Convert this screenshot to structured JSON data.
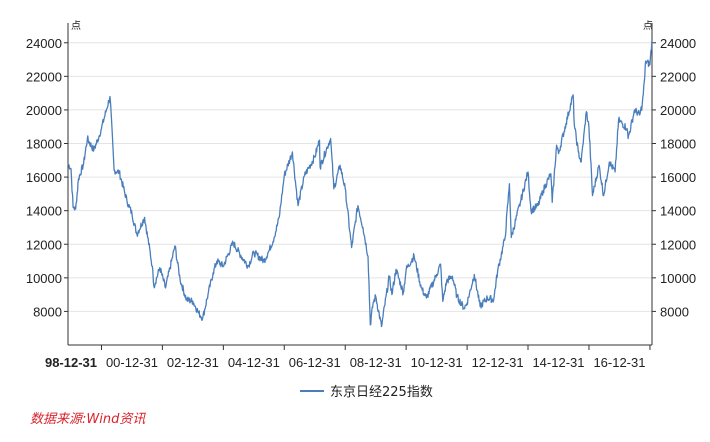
{
  "chart_data": {
    "type": "line",
    "title": "",
    "left_unit": "点",
    "right_unit": "点",
    "x_tick_labels": [
      "98-12-31",
      "00-12-31",
      "02-12-31",
      "04-12-31",
      "06-12-31",
      "08-12-31",
      "10-12-31",
      "12-12-31",
      "14-12-31",
      "16-12-31"
    ],
    "y_ticks": [
      8000,
      10000,
      12000,
      14000,
      16000,
      18000,
      20000,
      22000,
      24000
    ],
    "ylim": [
      6000,
      24700
    ],
    "xlim": [
      "1998-11-25",
      "2018-01-25"
    ],
    "grid": true,
    "legend_position": "bottom-center",
    "series": [
      {
        "name": "东京日经225指数",
        "color": "#4a7ebb",
        "points": [
          [
            "1998-11-25",
            16800
          ],
          [
            "1998-12-31",
            16500
          ],
          [
            "1999-01-25",
            14200
          ],
          [
            "1999-02-25",
            14100
          ],
          [
            "1999-03-31",
            15900
          ],
          [
            "1999-05-31",
            16800
          ],
          [
            "1999-07-15",
            18300
          ],
          [
            "1999-09-30",
            17600
          ],
          [
            "1999-11-30",
            18400
          ],
          [
            "1999-12-31",
            18900
          ],
          [
            "2000-02-28",
            20000
          ],
          [
            "2000-04-12",
            20800
          ],
          [
            "2000-05-31",
            16400
          ],
          [
            "2000-07-31",
            16300
          ],
          [
            "2000-10-31",
            14600
          ],
          [
            "2000-12-31",
            13800
          ],
          [
            "2001-02-28",
            12600
          ],
          [
            "2001-05-31",
            13600
          ],
          [
            "2001-08-31",
            10700
          ],
          [
            "2001-09-20",
            9500
          ],
          [
            "2001-11-30",
            10600
          ],
          [
            "2002-02-06",
            9400
          ],
          [
            "2002-05-30",
            11900
          ],
          [
            "2002-07-31",
            9900
          ],
          [
            "2002-10-15",
            8700
          ],
          [
            "2002-12-31",
            8600
          ],
          [
            "2003-03-11",
            7900
          ],
          [
            "2003-04-28",
            7600
          ],
          [
            "2003-06-30",
            9000
          ],
          [
            "2003-08-31",
            10300
          ],
          [
            "2003-10-15",
            11000
          ],
          [
            "2003-12-31",
            10700
          ],
          [
            "2004-04-26",
            12100
          ],
          [
            "2004-07-31",
            11300
          ],
          [
            "2004-10-25",
            10700
          ],
          [
            "2004-12-31",
            11500
          ],
          [
            "2005-04-30",
            11000
          ],
          [
            "2005-06-30",
            11600
          ],
          [
            "2005-08-31",
            12400
          ],
          [
            "2005-10-31",
            13600
          ],
          [
            "2005-12-31",
            16100
          ],
          [
            "2006-04-07",
            17500
          ],
          [
            "2006-06-13",
            14300
          ],
          [
            "2006-08-31",
            16100
          ],
          [
            "2006-12-31",
            17200
          ],
          [
            "2007-02-26",
            18200
          ],
          [
            "2007-03-05",
            16600
          ],
          [
            "2007-05-31",
            17800
          ],
          [
            "2007-07-09",
            18300
          ],
          [
            "2007-08-17",
            15300
          ],
          [
            "2007-10-31",
            16700
          ],
          [
            "2007-12-31",
            15300
          ],
          [
            "2008-03-17",
            11800
          ],
          [
            "2008-05-31",
            14300
          ],
          [
            "2008-07-31",
            13000
          ],
          [
            "2008-09-30",
            11300
          ],
          [
            "2008-10-27",
            7200
          ],
          [
            "2008-11-30",
            8500
          ],
          [
            "2008-12-31",
            8900
          ],
          [
            "2009-03-10",
            7100
          ],
          [
            "2009-06-12",
            10100
          ],
          [
            "2009-07-13",
            9000
          ],
          [
            "2009-08-31",
            10500
          ],
          [
            "2009-11-27",
            9100
          ],
          [
            "2009-12-31",
            10500
          ],
          [
            "2010-04-05",
            11300
          ],
          [
            "2010-06-30",
            9400
          ],
          [
            "2010-08-31",
            8800
          ],
          [
            "2010-12-31",
            10200
          ],
          [
            "2011-02-17",
            10800
          ],
          [
            "2011-03-15",
            8600
          ],
          [
            "2011-04-30",
            9800
          ],
          [
            "2011-07-08",
            10100
          ],
          [
            "2011-08-31",
            8900
          ],
          [
            "2011-11-25",
            8200
          ],
          [
            "2011-12-31",
            8500
          ],
          [
            "2012-03-27",
            10200
          ],
          [
            "2012-06-04",
            8300
          ],
          [
            "2012-08-31",
            8800
          ],
          [
            "2012-11-14",
            8700
          ],
          [
            "2012-12-31",
            10400
          ],
          [
            "2013-03-31",
            12400
          ],
          [
            "2013-05-22",
            15600
          ],
          [
            "2013-06-13",
            12400
          ],
          [
            "2013-09-30",
            14500
          ],
          [
            "2013-12-30",
            16300
          ],
          [
            "2014-02-04",
            14000
          ],
          [
            "2014-04-30",
            14300
          ],
          [
            "2014-06-30",
            15200
          ],
          [
            "2014-09-30",
            16200
          ],
          [
            "2014-10-17",
            14500
          ],
          [
            "2014-12-08",
            17900
          ],
          [
            "2014-12-31",
            17400
          ],
          [
            "2015-03-31",
            19200
          ],
          [
            "2015-06-24",
            20900
          ],
          [
            "2015-07-09",
            19100
          ],
          [
            "2015-08-25",
            17500
          ],
          [
            "2015-09-29",
            16900
          ],
          [
            "2015-11-30",
            19900
          ],
          [
            "2015-12-31",
            19000
          ],
          [
            "2016-02-12",
            14900
          ],
          [
            "2016-04-30",
            16700
          ],
          [
            "2016-06-24",
            14900
          ],
          [
            "2016-08-31",
            16900
          ],
          [
            "2016-11-09",
            16300
          ],
          [
            "2016-12-21",
            19400
          ],
          [
            "2017-03-31",
            18900
          ],
          [
            "2017-04-14",
            18300
          ],
          [
            "2017-06-30",
            20000
          ],
          [
            "2017-08-31",
            19700
          ],
          [
            "2017-09-30",
            20300
          ],
          [
            "2017-10-31",
            22000
          ],
          [
            "2017-11-09",
            22900
          ],
          [
            "2017-12-31",
            22700
          ],
          [
            "2018-01-23",
            24100
          ]
        ]
      }
    ]
  },
  "source_text": "数据来源:Wind资讯"
}
